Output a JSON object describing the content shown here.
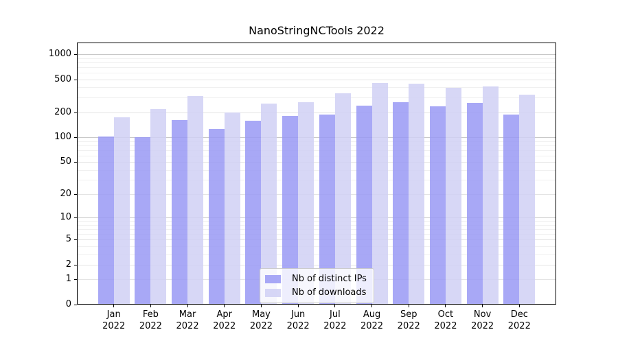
{
  "title": "NanoStringNCTools 2022",
  "chart_data": {
    "type": "bar",
    "title": "NanoStringNCTools 2022",
    "categories": [
      "Jan 2022",
      "Feb 2022",
      "Mar 2022",
      "Apr 2022",
      "May 2022",
      "Jun 2022",
      "Jul 2022",
      "Aug 2022",
      "Sep 2022",
      "Oct 2022",
      "Nov 2022",
      "Dec 2022"
    ],
    "x_months": [
      "Jan",
      "Feb",
      "Mar",
      "Apr",
      "May",
      "Jun",
      "Jul",
      "Aug",
      "Sep",
      "Oct",
      "Nov",
      "Dec"
    ],
    "x_year": "2022",
    "series": [
      {
        "name": "Nb of distinct IPs",
        "color": "#9999f5",
        "values": [
          102,
          100,
          162,
          127,
          159,
          182,
          188,
          241,
          265,
          237,
          260,
          188
        ]
      },
      {
        "name": "Nb of downloads",
        "color": "#d0d0f5",
        "values": [
          175,
          219,
          314,
          198,
          255,
          265,
          340,
          450,
          443,
          394,
          410,
          327
        ]
      }
    ],
    "bar_alpha": 0.85,
    "y_scale": "log1p",
    "y_ticks": [
      0,
      1,
      2,
      5,
      10,
      20,
      50,
      100,
      200,
      500,
      1000
    ],
    "y_minor_gridlines": [
      3,
      4,
      6,
      7,
      8,
      9,
      30,
      40,
      60,
      70,
      80,
      90,
      300,
      400,
      600,
      700,
      800,
      900
    ],
    "ylim": [
      0,
      1380
    ],
    "grid": "on",
    "legend_position": "lower-center-inside"
  },
  "colors": {
    "grid_decade": "#c8c8c8",
    "grid_major": "#e4e4e4",
    "grid_minor": "#f0f0f0",
    "axis": "#000000",
    "background": "#ffffff",
    "legend_border": "#cccccc"
  }
}
